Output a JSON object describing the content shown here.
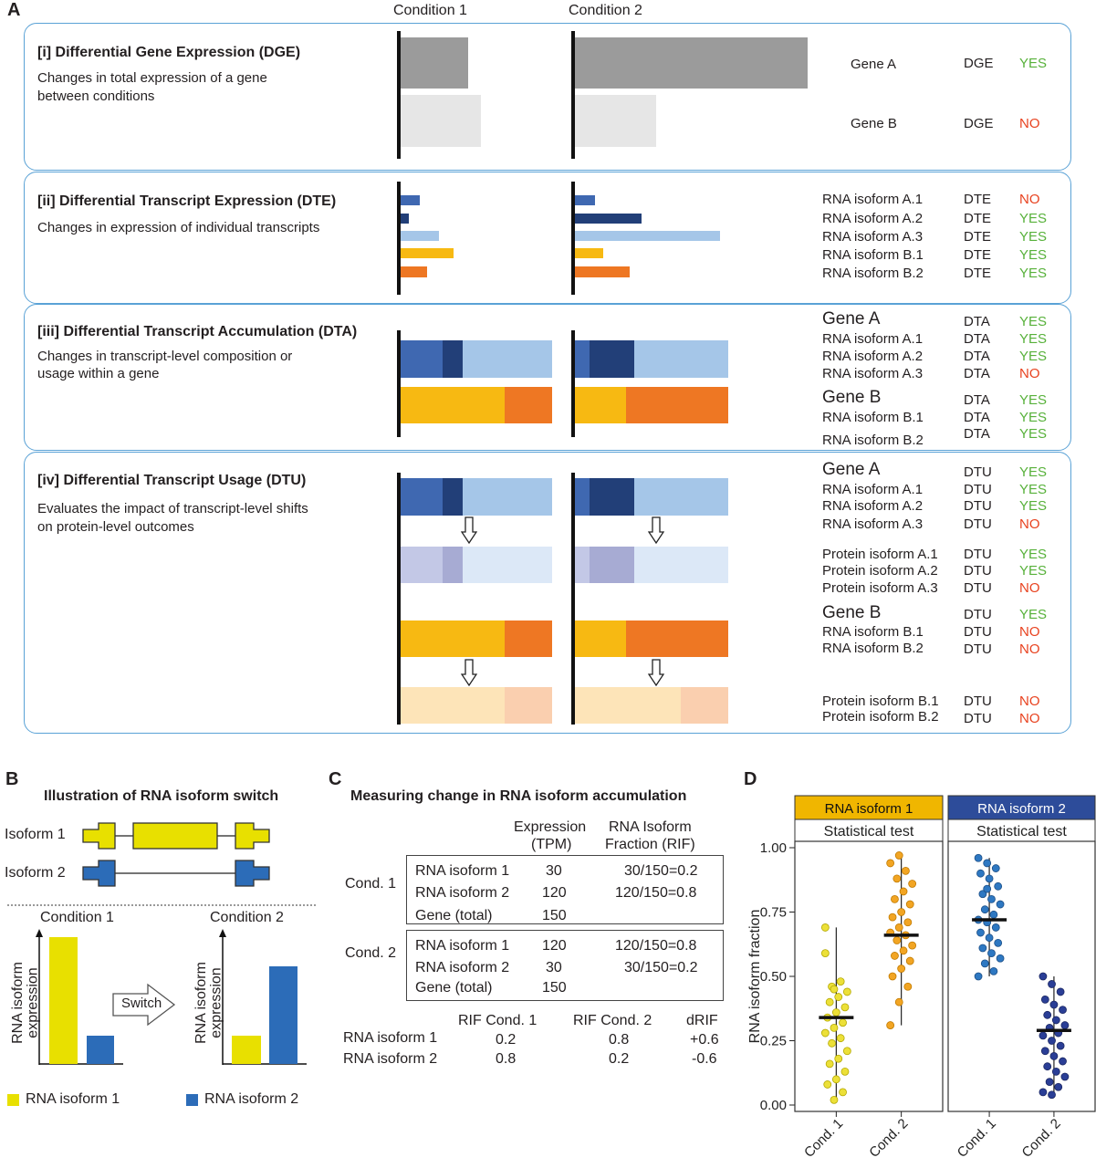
{
  "panel_letters": {
    "a": "A",
    "b": "B",
    "c": "C",
    "d": "D"
  },
  "condition_headers": {
    "c1": "Condition 1",
    "c2": "Condition 2"
  },
  "colors": {
    "box_border": "#5aa2d6",
    "grey_dark": "#9b9b9b",
    "grey_light": "#e6e6e6",
    "blue_mid": "#3f68b1",
    "blue_dark": "#223f78",
    "blue_light": "#a5c6e8",
    "yellow": "#f7b912",
    "orange": "#ee7723",
    "iso1_yellow": "#e8e000",
    "iso2_blue": "#2c6cb8",
    "yes": "#57b13a",
    "no": "#e8421f"
  },
  "dge": {
    "title": "[i] Differential Gene Expression (DGE)",
    "desc1": "Changes in total expression of a gene",
    "desc2": "between conditions",
    "rows": [
      {
        "name": "Gene A",
        "test": "DGE",
        "result": "YES"
      },
      {
        "name": "Gene B",
        "test": "DGE",
        "result": "NO"
      }
    ]
  },
  "dte": {
    "title": "[ii] Differential Transcript Expression (DTE)",
    "desc1": "Changes in expression of individual transcripts",
    "rows": [
      {
        "name": "RNA isoform A.1",
        "test": "DTE",
        "result": "NO"
      },
      {
        "name": "RNA isoform A.2",
        "test": "DTE",
        "result": "YES"
      },
      {
        "name": "RNA isoform A.3",
        "test": "DTE",
        "result": "YES"
      },
      {
        "name": "RNA isoform B.1",
        "test": "DTE",
        "result": "YES"
      },
      {
        "name": "RNA isoform B.2",
        "test": "DTE",
        "result": "YES"
      }
    ]
  },
  "dta": {
    "title": "[iii] Differential Transcript Accumulation (DTA)",
    "desc1": "Changes in transcript-level composition or",
    "desc2": "usage within a gene",
    "gene_a": {
      "name": "Gene A",
      "test": "DTA",
      "result": "YES"
    },
    "rows_a": [
      {
        "name": "RNA isoform A.1",
        "test": "DTA",
        "result": "YES"
      },
      {
        "name": "RNA isoform A.2",
        "test": "DTA",
        "result": "YES"
      },
      {
        "name": "RNA isoform A.3",
        "test": "DTA",
        "result": "NO"
      }
    ],
    "gene_b": {
      "name": "Gene B",
      "test": "DTA",
      "result": "YES"
    },
    "rows_b": [
      {
        "name": "RNA isoform B.1",
        "test": "DTA",
        "result": "YES"
      },
      {
        "name": "RNA isoform B.2",
        "test": "DTA",
        "result": "YES"
      }
    ]
  },
  "dtu": {
    "title": "[iv] Differential Transcript Usage (DTU)",
    "desc1": "Evaluates the impact of transcript-level shifts",
    "desc2": "on protein-level outcomes",
    "gene_a": {
      "name": "Gene A",
      "test": "DTU",
      "result": "YES"
    },
    "rows_a": [
      {
        "name": "RNA isoform A.1",
        "test": "DTU",
        "result": "YES"
      },
      {
        "name": "RNA isoform A.2",
        "test": "DTU",
        "result": "YES"
      },
      {
        "name": "RNA isoform A.3",
        "test": "DTU",
        "result": "NO"
      }
    ],
    "prot_a": [
      {
        "name": "Protein isoform A.1",
        "test": "DTU",
        "result": "YES"
      },
      {
        "name": "Protein isoform A.2",
        "test": "DTU",
        "result": "YES"
      },
      {
        "name": "Protein isoform A.3",
        "test": "DTU",
        "result": "NO"
      }
    ],
    "gene_b": {
      "name": "Gene B",
      "test": "DTU",
      "result": "YES"
    },
    "rows_b": [
      {
        "name": "RNA isoform B.1",
        "test": "DTU",
        "result": "NO"
      },
      {
        "name": "RNA isoform B.2",
        "test": "DTU",
        "result": "NO"
      }
    ],
    "prot_b": [
      {
        "name": "Protein isoform B.1",
        "test": "DTU",
        "result": "NO"
      },
      {
        "name": "Protein isoform B.2",
        "test": "DTU",
        "result": "NO"
      }
    ]
  },
  "panel_b": {
    "title": "Illustration of RNA isoform switch",
    "iso1": "Isoform 1",
    "iso2": "Isoform 2",
    "cond1": "Condition 1",
    "cond2": "Condition 2",
    "ylabel1": "RNA isoform",
    "ylabel2": "expression",
    "switch": "Switch",
    "legend1": "RNA isoform 1",
    "legend2": "RNA isoform 2"
  },
  "panel_c": {
    "title": "Measuring change in RNA isoform accumulation",
    "col_expr1": "Expression",
    "col_expr2": "(TPM)",
    "col_rif1": "RNA Isoform",
    "col_rif2": "Fraction (RIF)",
    "cond1": "Cond. 1",
    "cond2": "Cond. 2",
    "cond1_rows": [
      {
        "name": "RNA isoform 1",
        "tpm": "30",
        "rif": "30/150=0.2"
      },
      {
        "name": "RNA isoform 2",
        "tpm": "120",
        "rif": "120/150=0.8"
      },
      {
        "name": "Gene (total)",
        "tpm": "150",
        "rif": ""
      }
    ],
    "cond2_rows": [
      {
        "name": "RNA isoform 1",
        "tpm": "120",
        "rif": "120/150=0.8"
      },
      {
        "name": "RNA isoform 2",
        "tpm": "30",
        "rif": "30/150=0.2"
      },
      {
        "name": "Gene (total)",
        "tpm": "150",
        "rif": ""
      }
    ],
    "summary_headers": {
      "rif1": "RIF Cond. 1",
      "rif2": "RIF Cond. 2",
      "drif": "dRIF"
    },
    "summary_rows": [
      {
        "name": "RNA isoform 1",
        "rif1": "0.2",
        "rif2": "0.8",
        "drif": "+0.6"
      },
      {
        "name": "RNA isoform 2",
        "rif1": "0.8",
        "rif2": "0.2",
        "drif": "-0.6"
      }
    ]
  },
  "chart_data": {
    "type": "scatter",
    "ylabel": "RNA isoform fraction",
    "ylim": [
      0,
      1
    ],
    "yticks": [
      "0.00",
      "0.25",
      "0.50",
      "0.75",
      "1.00"
    ],
    "facets": [
      {
        "strip": "RNA isoform 1",
        "subtitle": "Statistical test",
        "categories": [
          "Cond. 1",
          "Cond. 2"
        ],
        "series": [
          {
            "category": "Cond. 1",
            "median": 0.34,
            "range": [
              0.02,
              0.69
            ],
            "values": [
              0.69,
              0.02,
              0.05,
              0.08,
              0.1,
              0.13,
              0.16,
              0.18,
              0.21,
              0.24,
              0.26,
              0.28,
              0.3,
              0.32,
              0.34,
              0.36,
              0.38,
              0.4,
              0.42,
              0.44,
              0.46,
              0.48,
              0.59,
              0.45
            ]
          },
          {
            "category": "Cond. 2",
            "median": 0.66,
            "range": [
              0.31,
              0.97
            ],
            "values": [
              0.31,
              0.4,
              0.46,
              0.5,
              0.53,
              0.56,
              0.58,
              0.6,
              0.62,
              0.64,
              0.66,
              0.67,
              0.69,
              0.71,
              0.73,
              0.75,
              0.78,
              0.8,
              0.83,
              0.86,
              0.88,
              0.91,
              0.94,
              0.97
            ]
          }
        ]
      },
      {
        "strip": "RNA isoform 2",
        "subtitle": "Statistical test",
        "categories": [
          "Cond. 1",
          "Cond. 2"
        ],
        "series": [
          {
            "category": "Cond. 1",
            "median": 0.72,
            "range": [
              0.5,
              0.96
            ],
            "values": [
              0.96,
              0.94,
              0.92,
              0.9,
              0.88,
              0.85,
              0.82,
              0.8,
              0.78,
              0.76,
              0.74,
              0.72,
              0.71,
              0.69,
              0.67,
              0.65,
              0.63,
              0.61,
              0.59,
              0.57,
              0.55,
              0.52,
              0.5,
              0.84
            ]
          },
          {
            "category": "Cond. 2",
            "median": 0.29,
            "range": [
              0.04,
              0.5
            ],
            "values": [
              0.5,
              0.47,
              0.44,
              0.41,
              0.39,
              0.37,
              0.35,
              0.33,
              0.31,
              0.3,
              0.28,
              0.27,
              0.25,
              0.23,
              0.21,
              0.19,
              0.17,
              0.15,
              0.13,
              0.11,
              0.09,
              0.07,
              0.05,
              0.04
            ]
          }
        ]
      }
    ]
  }
}
